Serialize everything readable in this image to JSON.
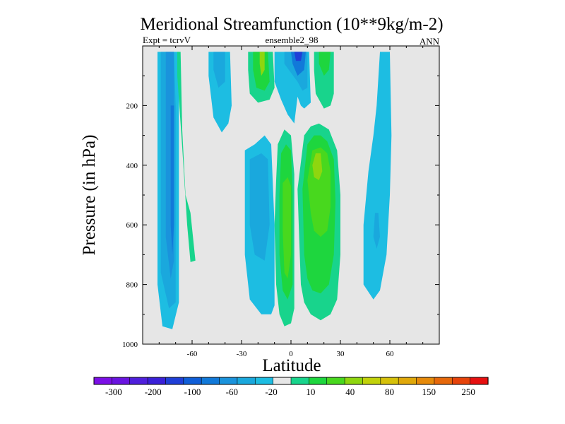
{
  "chart_data": {
    "type": "heatmap",
    "title": "Meridional Streamfunction (10**9kg/m-2)",
    "left_label": "Expt = tcrvV",
    "center_label": "ensemble2_98",
    "right_label": "ANN",
    "xlabel": "Latitude",
    "ylabel": "Pressure (in hPa)",
    "xlim": [
      -90,
      90
    ],
    "ylim": [
      1000,
      0
    ],
    "x_ticks": [
      -60,
      -30,
      0,
      30,
      60
    ],
    "x_tick_labels": [
      "-60",
      "-30",
      "0",
      "30",
      "60"
    ],
    "y_ticks": [
      200,
      400,
      600,
      800,
      1000
    ],
    "y_tick_labels": [
      "200",
      "400",
      "600",
      "800",
      "1000"
    ],
    "background_color": "#e6e6e6",
    "colorbar": {
      "colors": [
        "#7b0fe6",
        "#6a14e0",
        "#4f1fdc",
        "#3a20d8",
        "#1f3fd7",
        "#0f5ed8",
        "#1179d9",
        "#1a93dc",
        "#1aa8dd",
        "#1dbde2",
        "#e6e6e6",
        "#18d48c",
        "#1ed63e",
        "#48d81e",
        "#8fd60f",
        "#c2d20a",
        "#d6c10a",
        "#e0a80a",
        "#e68a0a",
        "#e6680a",
        "#e6430a",
        "#e61010"
      ],
      "labels": [
        "-300",
        "-200",
        "-100",
        "-60",
        "-20",
        "10",
        "40",
        "80",
        "150",
        "250"
      ]
    },
    "regions": [
      {
        "name": "sh-ferrel-cell",
        "color": "#1dbde2",
        "points": [
          [
            -81,
            20
          ],
          [
            -70,
            20
          ],
          [
            -68,
            20
          ],
          [
            -68,
            860
          ],
          [
            -72,
            950
          ],
          [
            -78,
            940
          ],
          [
            -81,
            800
          ]
        ]
      },
      {
        "name": "sh-ferrel-cell",
        "color": "#1aa8dd",
        "points": [
          [
            -79,
            20
          ],
          [
            -71,
            20
          ],
          [
            -70,
            200
          ],
          [
            -70,
            860
          ],
          [
            -74,
            880
          ],
          [
            -79,
            760
          ]
        ]
      },
      {
        "name": "sh-ferrel-cell",
        "color": "#1a93dc",
        "points": [
          [
            -76,
            20
          ],
          [
            -71,
            20
          ],
          [
            -71,
            300
          ],
          [
            -71,
            720
          ],
          [
            -73,
            780
          ],
          [
            -76,
            640
          ]
        ]
      },
      {
        "name": "sh-ferrel-cell",
        "color": "#1179d9",
        "points": [
          [
            -73,
            200
          ],
          [
            -71,
            200
          ],
          [
            -71,
            600
          ],
          [
            -72,
            700
          ],
          [
            -73,
            600
          ]
        ]
      },
      {
        "name": "sh-green-strip",
        "color": "#18d48c",
        "points": [
          [
            -69,
            20
          ],
          [
            -67,
            20
          ],
          [
            -66,
            280
          ],
          [
            -64,
            500
          ],
          [
            -61,
            560
          ],
          [
            -58,
            720
          ],
          [
            -61,
            725
          ],
          [
            -63,
            600
          ],
          [
            -66,
            340
          ],
          [
            -69,
            100
          ]
        ]
      },
      {
        "name": "sh-upper-cyan",
        "color": "#1dbde2",
        "points": [
          [
            -50,
            20
          ],
          [
            -37,
            20
          ],
          [
            -36,
            200
          ],
          [
            -38,
            260
          ],
          [
            -42,
            290
          ],
          [
            -47,
            240
          ],
          [
            -50,
            100
          ]
        ]
      },
      {
        "name": "sh-upper-cyan",
        "color": "#1aa8dd",
        "points": [
          [
            -47,
            20
          ],
          [
            -40,
            20
          ],
          [
            -40,
            120
          ],
          [
            -44,
            140
          ],
          [
            -47,
            80
          ]
        ]
      },
      {
        "name": "sh-hadley-upper",
        "color": "#18d48c",
        "points": [
          [
            -26,
            20
          ],
          [
            -11,
            20
          ],
          [
            -10,
            140
          ],
          [
            -13,
            180
          ],
          [
            -20,
            190
          ],
          [
            -25,
            160
          ],
          [
            -26,
            80
          ]
        ]
      },
      {
        "name": "sh-hadley-upper",
        "color": "#1ed63e",
        "points": [
          [
            -23,
            20
          ],
          [
            -14,
            20
          ],
          [
            -13,
            120
          ],
          [
            -16,
            150
          ],
          [
            -21,
            140
          ],
          [
            -23,
            80
          ]
        ]
      },
      {
        "name": "sh-hadley-upper",
        "color": "#8fd60f",
        "points": [
          [
            -19,
            20
          ],
          [
            -16,
            20
          ],
          [
            -16,
            80
          ],
          [
            -18,
            100
          ],
          [
            -19,
            60
          ]
        ]
      },
      {
        "name": "eq-upper-blue",
        "color": "#1dbde2",
        "points": [
          [
            -10,
            20
          ],
          [
            11,
            20
          ],
          [
            12,
            190
          ],
          [
            8,
            210
          ],
          [
            6,
            200
          ],
          [
            4,
            170
          ],
          [
            2,
            260
          ],
          [
            -2,
            230
          ],
          [
            -6,
            180
          ],
          [
            -10,
            120
          ]
        ]
      },
      {
        "name": "eq-upper-blue",
        "color": "#1aa8dd",
        "points": [
          [
            -4,
            20
          ],
          [
            10,
            20
          ],
          [
            10,
            140
          ],
          [
            7,
            150
          ],
          [
            4,
            120
          ],
          [
            0,
            90
          ],
          [
            -4,
            60
          ]
        ]
      },
      {
        "name": "eq-upper-blue",
        "color": "#1179d9",
        "points": [
          [
            0,
            20
          ],
          [
            9,
            20
          ],
          [
            8,
            80
          ],
          [
            4,
            100
          ],
          [
            1,
            60
          ]
        ]
      },
      {
        "name": "eq-upper-blue",
        "color": "#1f3fd7",
        "points": [
          [
            2,
            20
          ],
          [
            7,
            20
          ],
          [
            6,
            50
          ],
          [
            3,
            50
          ]
        ]
      },
      {
        "name": "nh-upper-green",
        "color": "#18d48c",
        "points": [
          [
            14,
            20
          ],
          [
            26,
            20
          ],
          [
            26,
            160
          ],
          [
            24,
            200
          ],
          [
            20,
            210
          ],
          [
            15,
            160
          ],
          [
            14,
            80
          ]
        ]
      },
      {
        "name": "nh-upper-green",
        "color": "#1ed63e",
        "points": [
          [
            17,
            20
          ],
          [
            24,
            20
          ],
          [
            23,
            80
          ],
          [
            20,
            100
          ],
          [
            17,
            60
          ]
        ]
      },
      {
        "name": "sh-lower-blue",
        "color": "#1dbde2",
        "points": [
          [
            -28,
            350
          ],
          [
            -22,
            330
          ],
          [
            -16,
            300
          ],
          [
            -12,
            330
          ],
          [
            -10,
            600
          ],
          [
            -10,
            870
          ],
          [
            -12,
            900
          ],
          [
            -18,
            900
          ],
          [
            -25,
            850
          ],
          [
            -28,
            700
          ]
        ]
      },
      {
        "name": "sh-lower-blue",
        "color": "#1aa8dd",
        "points": [
          [
            -25,
            380
          ],
          [
            -18,
            360
          ],
          [
            -14,
            380
          ],
          [
            -13,
            600
          ],
          [
            -16,
            720
          ],
          [
            -22,
            700
          ],
          [
            -25,
            600
          ]
        ]
      },
      {
        "name": "eq-lower-green",
        "color": "#18d48c",
        "points": [
          [
            -8,
            330
          ],
          [
            -4,
            280
          ],
          [
            0,
            300
          ],
          [
            2,
            430
          ],
          [
            2,
            880
          ],
          [
            0,
            930
          ],
          [
            -4,
            940
          ],
          [
            -7,
            900
          ],
          [
            -9,
            800
          ],
          [
            -10,
            600
          ],
          [
            -9,
            450
          ]
        ]
      },
      {
        "name": "eq-lower-green",
        "color": "#1ed63e",
        "points": [
          [
            -6,
            360
          ],
          [
            -3,
            330
          ],
          [
            0,
            350
          ],
          [
            1,
            500
          ],
          [
            1,
            800
          ],
          [
            -2,
            850
          ],
          [
            -5,
            820
          ],
          [
            -7,
            700
          ],
          [
            -7,
            500
          ]
        ]
      },
      {
        "name": "eq-lower-green",
        "color": "#48d81e",
        "points": [
          [
            -5,
            460
          ],
          [
            -2,
            440
          ],
          [
            0,
            470
          ],
          [
            0,
            700
          ],
          [
            -2,
            780
          ],
          [
            -4,
            760
          ],
          [
            -5,
            620
          ]
        ]
      },
      {
        "name": "nh-hadley-lower",
        "color": "#18d48c",
        "points": [
          [
            4,
            480
          ],
          [
            8,
            300
          ],
          [
            12,
            270
          ],
          [
            17,
            260
          ],
          [
            23,
            280
          ],
          [
            28,
            350
          ],
          [
            30,
            500
          ],
          [
            30,
            700
          ],
          [
            28,
            850
          ],
          [
            24,
            900
          ],
          [
            18,
            920
          ],
          [
            12,
            900
          ],
          [
            8,
            860
          ],
          [
            6,
            800
          ],
          [
            5,
            650
          ]
        ]
      },
      {
        "name": "nh-hadley-lower",
        "color": "#1ed63e",
        "points": [
          [
            7,
            480
          ],
          [
            10,
            330
          ],
          [
            14,
            300
          ],
          [
            18,
            300
          ],
          [
            22,
            320
          ],
          [
            26,
            380
          ],
          [
            27,
            520
          ],
          [
            26,
            700
          ],
          [
            23,
            800
          ],
          [
            18,
            830
          ],
          [
            13,
            820
          ],
          [
            10,
            780
          ],
          [
            8,
            700
          ]
        ]
      },
      {
        "name": "nh-hadley-lower",
        "color": "#48d81e",
        "points": [
          [
            10,
            450
          ],
          [
            13,
            350
          ],
          [
            18,
            340
          ],
          [
            22,
            360
          ],
          [
            24,
            420
          ],
          [
            24,
            540
          ],
          [
            22,
            620
          ],
          [
            18,
            640
          ],
          [
            14,
            620
          ],
          [
            12,
            560
          ]
        ]
      },
      {
        "name": "nh-hadley-lower",
        "color": "#8fd60f",
        "points": [
          [
            13,
            400
          ],
          [
            15,
            360
          ],
          [
            18,
            360
          ],
          [
            19,
            420
          ],
          [
            17,
            450
          ],
          [
            14,
            440
          ]
        ]
      },
      {
        "name": "nh-ferrel-cell",
        "color": "#1dbde2",
        "points": [
          [
            54,
            20
          ],
          [
            60,
            20
          ],
          [
            61,
            300
          ],
          [
            60,
            500
          ],
          [
            58,
            700
          ],
          [
            54,
            820
          ],
          [
            50,
            850
          ],
          [
            44,
            800
          ],
          [
            44,
            600
          ],
          [
            47,
            420
          ],
          [
            50,
            300
          ],
          [
            52,
            200
          ]
        ]
      },
      {
        "name": "nh-ferrel-cell",
        "color": "#1aa8dd",
        "points": [
          [
            51,
            560
          ],
          [
            53,
            560
          ],
          [
            54,
            640
          ],
          [
            52,
            680
          ],
          [
            50,
            640
          ]
        ]
      }
    ]
  }
}
